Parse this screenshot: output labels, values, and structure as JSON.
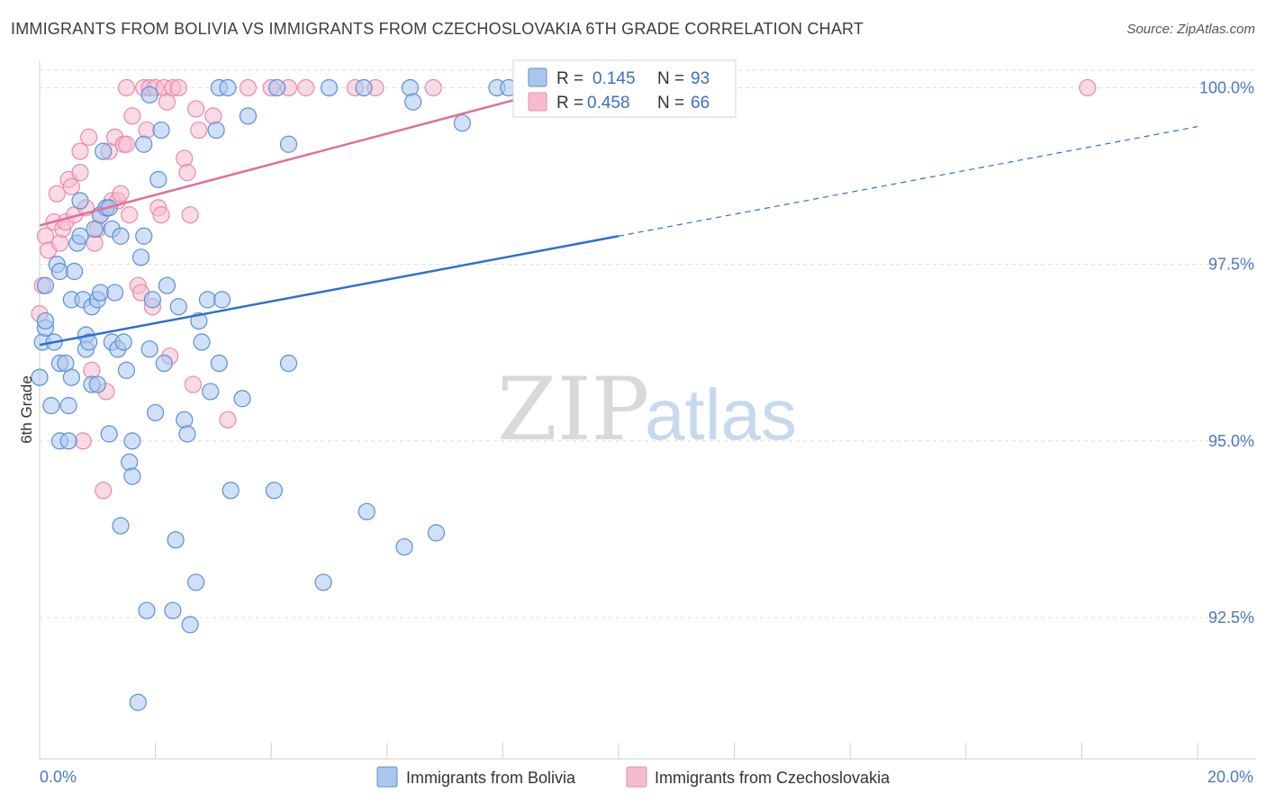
{
  "header": {
    "title": "IMMIGRANTS FROM BOLIVIA VS IMMIGRANTS FROM CZECHOSLOVAKIA 6TH GRADE CORRELATION CHART",
    "source": "Source: ZipAtlas.com"
  },
  "watermark": {
    "zip": "ZIP",
    "atlas": "atlas"
  },
  "legend": {
    "r_label": "R =",
    "n_label": "N =",
    "rows": [
      {
        "r": "0.145",
        "n": "93"
      },
      {
        "r": "0.458",
        "n": "66"
      }
    ]
  },
  "colors": {
    "bolivia_fill": "#a9c6ef",
    "bolivia_stroke": "#5b8fd6",
    "bolivia_line": "#2e6fcf",
    "czech_fill": "#f6bccd",
    "czech_stroke": "#e88aa8",
    "czech_line": "#e07096",
    "grid": "#dcdcdc",
    "tick_label": "#4a78c2"
  },
  "chart_data": {
    "type": "scatter",
    "title": "IMMIGRANTS FROM BOLIVIA VS IMMIGRANTS FROM CZECHOSLOVAKIA 6TH GRADE CORRELATION CHART",
    "xlabel": "",
    "ylabel": "6th Grade",
    "xlim": [
      0,
      20
    ],
    "ylim": [
      90.5,
      100.35
    ],
    "x_tick_labels": [
      {
        "value": 0,
        "label": "0.0%"
      },
      {
        "value": 20,
        "label": "20.0%"
      }
    ],
    "y_tick_labels": [
      {
        "value": 92.5,
        "label": "92.5%"
      },
      {
        "value": 95.0,
        "label": "95.0%"
      },
      {
        "value": 97.5,
        "label": "97.5%"
      },
      {
        "value": 100.0,
        "label": "100.0%"
      }
    ],
    "series": [
      {
        "name": "Immigrants from Bolivia",
        "R": 0.145,
        "N": 93,
        "trend": {
          "x0": 0,
          "y0": 96.36,
          "x1": 10,
          "y1": 97.9,
          "dash_to_x": 20,
          "dash_to_y": 99.45
        },
        "points": [
          [
            0.0,
            95.9
          ],
          [
            0.05,
            96.4
          ],
          [
            0.1,
            96.6
          ],
          [
            0.1,
            96.7
          ],
          [
            0.1,
            97.2
          ],
          [
            0.2,
            95.5
          ],
          [
            0.25,
            96.4
          ],
          [
            0.3,
            97.5
          ],
          [
            0.35,
            97.4
          ],
          [
            0.35,
            96.1
          ],
          [
            0.35,
            95.0
          ],
          [
            0.45,
            96.1
          ],
          [
            0.5,
            95.5
          ],
          [
            0.5,
            95.0
          ],
          [
            0.55,
            95.9
          ],
          [
            0.55,
            97.0
          ],
          [
            0.6,
            97.4
          ],
          [
            0.65,
            97.8
          ],
          [
            0.7,
            97.9
          ],
          [
            0.7,
            98.4
          ],
          [
            0.75,
            97.0
          ],
          [
            0.8,
            96.5
          ],
          [
            0.8,
            96.3
          ],
          [
            0.85,
            96.4
          ],
          [
            0.9,
            95.8
          ],
          [
            0.9,
            96.9
          ],
          [
            0.95,
            98.0
          ],
          [
            1.0,
            97.0
          ],
          [
            1.0,
            95.8
          ],
          [
            1.05,
            97.1
          ],
          [
            1.05,
            98.2
          ],
          [
            1.1,
            99.1
          ],
          [
            1.15,
            98.3
          ],
          [
            1.2,
            95.1
          ],
          [
            1.2,
            98.3
          ],
          [
            1.25,
            96.4
          ],
          [
            1.25,
            98.0
          ],
          [
            1.3,
            97.1
          ],
          [
            1.35,
            96.3
          ],
          [
            1.4,
            97.9
          ],
          [
            1.4,
            93.8
          ],
          [
            1.45,
            96.4
          ],
          [
            1.5,
            96.0
          ],
          [
            1.55,
            94.7
          ],
          [
            1.6,
            94.5
          ],
          [
            1.6,
            95.0
          ],
          [
            1.7,
            91.3
          ],
          [
            1.75,
            97.6
          ],
          [
            1.8,
            99.2
          ],
          [
            1.8,
            97.9
          ],
          [
            1.85,
            92.6
          ],
          [
            1.9,
            99.9
          ],
          [
            1.9,
            96.3
          ],
          [
            1.95,
            97.0
          ],
          [
            2.0,
            95.4
          ],
          [
            2.05,
            98.7
          ],
          [
            2.1,
            99.4
          ],
          [
            2.15,
            96.1
          ],
          [
            2.2,
            97.2
          ],
          [
            2.3,
            92.6
          ],
          [
            2.35,
            93.6
          ],
          [
            2.4,
            96.9
          ],
          [
            2.5,
            95.3
          ],
          [
            2.55,
            95.1
          ],
          [
            2.6,
            92.4
          ],
          [
            2.7,
            93.0
          ],
          [
            2.75,
            96.7
          ],
          [
            2.8,
            96.4
          ],
          [
            2.9,
            97.0
          ],
          [
            2.95,
            95.7
          ],
          [
            3.05,
            99.4
          ],
          [
            3.1,
            96.1
          ],
          [
            3.1,
            100.0
          ],
          [
            3.15,
            97.0
          ],
          [
            3.25,
            100.0
          ],
          [
            3.3,
            94.3
          ],
          [
            3.5,
            95.6
          ],
          [
            3.6,
            99.6
          ],
          [
            4.05,
            94.3
          ],
          [
            4.1,
            100.0
          ],
          [
            4.3,
            96.1
          ],
          [
            4.3,
            99.2
          ],
          [
            4.9,
            93.0
          ],
          [
            5.0,
            100.0
          ],
          [
            5.6,
            100.0
          ],
          [
            5.65,
            94.0
          ],
          [
            6.3,
            93.5
          ],
          [
            6.4,
            100.0
          ],
          [
            6.45,
            99.8
          ],
          [
            6.85,
            93.7
          ],
          [
            7.3,
            99.5
          ],
          [
            7.9,
            100.0
          ],
          [
            8.1,
            100.0
          ]
        ]
      },
      {
        "name": "Immigrants from Czechoslovakia",
        "R": 0.458,
        "N": 66,
        "trend": {
          "x0": 0,
          "y0": 98.05,
          "x1": 9.0,
          "y1": 100.0
        },
        "points": [
          [
            0.0,
            96.8
          ],
          [
            0.05,
            97.2
          ],
          [
            0.1,
            97.9
          ],
          [
            0.15,
            97.7
          ],
          [
            0.25,
            98.1
          ],
          [
            0.3,
            98.5
          ],
          [
            0.35,
            97.8
          ],
          [
            0.4,
            98.0
          ],
          [
            0.45,
            98.1
          ],
          [
            0.5,
            98.7
          ],
          [
            0.55,
            98.6
          ],
          [
            0.6,
            98.2
          ],
          [
            0.7,
            98.8
          ],
          [
            0.7,
            99.1
          ],
          [
            0.75,
            95.0
          ],
          [
            0.8,
            98.3
          ],
          [
            0.85,
            99.3
          ],
          [
            0.9,
            96.0
          ],
          [
            0.95,
            97.8
          ],
          [
            1.0,
            98.0
          ],
          [
            1.05,
            98.2
          ],
          [
            1.1,
            94.3
          ],
          [
            1.15,
            98.3
          ],
          [
            1.15,
            95.7
          ],
          [
            1.2,
            99.1
          ],
          [
            1.25,
            98.4
          ],
          [
            1.3,
            99.3
          ],
          [
            1.35,
            98.4
          ],
          [
            1.4,
            98.5
          ],
          [
            1.45,
            99.2
          ],
          [
            1.5,
            100.0
          ],
          [
            1.5,
            99.2
          ],
          [
            1.55,
            98.2
          ],
          [
            1.6,
            99.6
          ],
          [
            1.7,
            97.2
          ],
          [
            1.75,
            97.1
          ],
          [
            1.8,
            100.0
          ],
          [
            1.85,
            99.4
          ],
          [
            1.9,
            100.0
          ],
          [
            1.95,
            96.9
          ],
          [
            2.0,
            100.0
          ],
          [
            2.05,
            98.3
          ],
          [
            2.1,
            98.2
          ],
          [
            2.15,
            100.0
          ],
          [
            2.2,
            99.8
          ],
          [
            2.25,
            96.2
          ],
          [
            2.3,
            100.0
          ],
          [
            2.4,
            100.0
          ],
          [
            2.5,
            99.0
          ],
          [
            2.55,
            98.8
          ],
          [
            2.6,
            98.2
          ],
          [
            2.65,
            95.8
          ],
          [
            2.7,
            99.7
          ],
          [
            2.75,
            99.4
          ],
          [
            3.0,
            99.6
          ],
          [
            3.25,
            95.3
          ],
          [
            3.6,
            100.0
          ],
          [
            4.0,
            100.0
          ],
          [
            4.3,
            100.0
          ],
          [
            4.6,
            100.0
          ],
          [
            5.45,
            100.0
          ],
          [
            5.8,
            100.0
          ],
          [
            6.8,
            100.0
          ],
          [
            8.5,
            100.0
          ],
          [
            9.55,
            100.0
          ],
          [
            18.1,
            100.0
          ]
        ]
      }
    ],
    "bottom_legend": [
      "Immigrants from Bolivia",
      "Immigrants from Czechoslovakia"
    ]
  }
}
